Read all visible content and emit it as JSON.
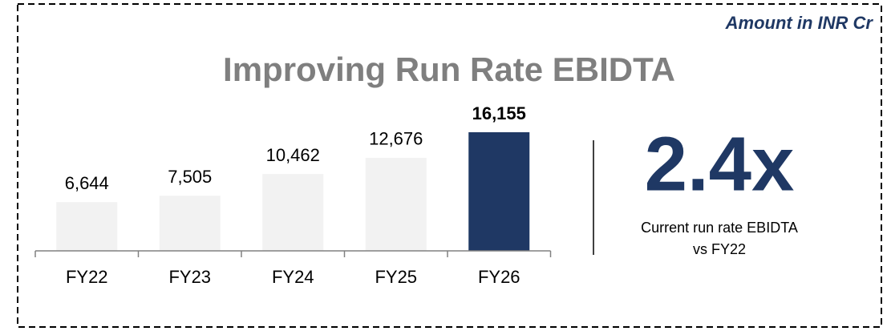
{
  "chart_data": {
    "type": "bar",
    "title": "Improving Run Rate EBIDTA",
    "subtitle": "Amount in INR Cr",
    "categories": [
      "FY22",
      "FY23",
      "FY24",
      "FY25",
      "FY26"
    ],
    "values": [
      6644,
      7505,
      10462,
      12676,
      16155
    ],
    "value_labels": [
      "6,644",
      "7,505",
      "10,462",
      "12,676",
      "16,155"
    ],
    "colors": [
      "#f2f2f2",
      "#f2f2f2",
      "#f2f2f2",
      "#f2f2f2",
      "#1f3864"
    ],
    "callout": {
      "value": "2.4x",
      "text": [
        "Current run rate EBIDTA",
        "vs FY22"
      ]
    }
  }
}
